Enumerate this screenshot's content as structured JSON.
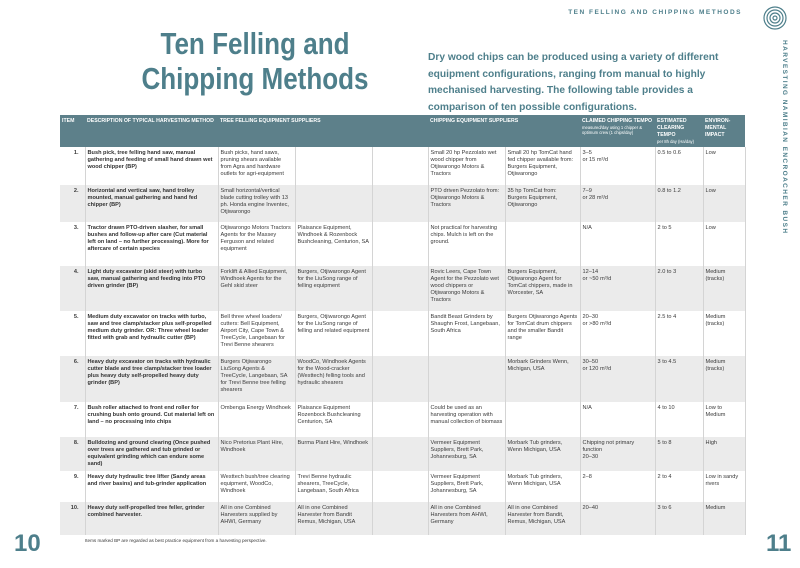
{
  "header": {
    "running_title": "TEN FELLING AND CHIPPING METHODS",
    "side_title": "HARVESTING NAMIBIAN ENCROACHER BUSH"
  },
  "title": "Ten Felling and Chipping Methods",
  "intro": "Dry wood chips can be produced using a variety of different equipment configurations, ranging from manual to highly mechanised harvesting. The following table provides a comparison of ten possible configurations.",
  "table": {
    "columns": {
      "item": "ITEM",
      "description": "DESCRIPTION OF TYPICAL HARVESTING METHOD",
      "felling": "TREE FELLING EQUIPMENT SUPPLIERS",
      "chipping": "CHIPPING EQUIPMENT SUPPLIERS",
      "chipping_tempo": "CLAIMED CHIPPING TEMPO",
      "chipping_tempo_note": "measured/day using 1 chipper & optimum crew (1 chips/day)",
      "clearing_tempo": "ESTIMATED CLEARING TEMPO",
      "clearing_tempo_note": "per 8h day (Ha/day)",
      "impact": "ENVIRON-MENTAL IMPACT"
    },
    "rows": [
      {
        "item": "1.",
        "description": "Bush pick, tree felling hand saw, manual gathering and feeding of small hand drawn wet wood chipper (BP)",
        "felling_1": "Bush picks, hand saws, pruning shears available from Agra and hardware outlets for agri-equipment",
        "chipping_1": "Small 20 hp Pezzolato wet wood chipper from Otjiwarongo Motors & Tractors",
        "chipping_2": "Small 20 hp TomCat hand fed chipper available from: Burgers Equipment, Otjiwarongo",
        "chipping_tempo": "3–5\nor 15 m³/d",
        "clearing_tempo": "0.5 to 0.6",
        "impact": "Low"
      },
      {
        "item": "2.",
        "description": "Horizontal and vertical saw, hand trolley mounted, manual gathering and hand fed chipper (BP)",
        "felling_1": "Small horizontal/vertical blade cutting trolley with 13 ph. Honda engine Inventec, Otjiwarongo",
        "chipping_1": "PTO driven Pezzolato from: Otjiwarongo Motors & Tractors",
        "chipping_2": "35 hp TomCat from: Burgers Equipment, Otjiwarongo",
        "chipping_tempo": "7–9\nor 28 m³/d",
        "clearing_tempo": "0.8 to 1.2",
        "impact": "Low"
      },
      {
        "item": "3.",
        "description": "Tractor drawn PTO-driven slasher, for small bushes and follow-up after care (Cut material left on land – no further processing). More for aftercare of certain species",
        "felling_1": "Otjiwarongo Motors Tractors Agents for the Massey Ferguson and related equipment",
        "felling_2": "Plaisance Equipment, Windhoek & Rozenbock Bushcleaning, Centurion, SA",
        "chipping_1": "Not practical for harvesting chips. Mulch is left on the ground.",
        "chipping_tempo": "N/A",
        "clearing_tempo": "2 to 5",
        "impact": "Low"
      },
      {
        "item": "4.",
        "description": "Light duty excavator (skid steer) with turbo saw, manual gathering and feeding into PTO driven grinder (BP)",
        "felling_1": "Forklift & Allied Equipment, Windhoek Agents for the Gehl skid steer",
        "felling_2": "Burgers, Otjiwarongo Agent for the LiuSong range of felling equipment",
        "chipping_1": "Rovic Leers, Cape Town Agent for the Pezzolato wet wood chippers or Otjiwarongo Motors & Tractors",
        "chipping_2": "Burgers Equipment, Otjiwarongo Agent for TomCat chippers, made in Worcester, SA",
        "chipping_tempo": "12–14\nor ~50 m³/d",
        "clearing_tempo": "2.0 to 3",
        "impact": "Medium (tracks)"
      },
      {
        "item": "5.",
        "description": "Medium duty excavator on tracks with turbo, saw and tree clamp/stacker plus self-propelled medium duty grinder. OR: Three wheel loader fitted with grab and hydraulic cutter (BP)",
        "felling_1": "Bell three wheel loaders/ cutters: Bell Equipment, Airport City, Cape Town & TreeCycle, Langebaan for Trevi Benne shearers",
        "felling_2": "Burgers, Otjiwarongo Agent for the LiuSong range of felling and related equipment",
        "chipping_1": "Bandit Beast Grinders by Shaughn Frost, Langebaan, South Africa",
        "chipping_2": "Burgers Otjiwarongo Agents for TomCat drum chippers and the smaller Bandit range",
        "chipping_tempo": "20–30\nor >80 m³/d",
        "clearing_tempo": "2.5 to 4",
        "impact": "Medium (tracks)"
      },
      {
        "item": "6.",
        "description": "Heavy duty excavator on tracks with hydraulic cutter blade and tree clamp/stacker tree loader plus heavy duty self-propelled heavy duty grinder (BP)",
        "felling_1": "Burgers Otjiwarongo LiuSong Agents & TreeCycle, Langebaan, SA for Trevi Benne tree felling shearers",
        "felling_2": "WoodCo, Windhoek Agents for the Wood-cracker (Westtech) felling tools and hydraulic shearers",
        "chipping_2": "Morbark Grinders Wenn, Michigan, USA",
        "chipping_tempo": "30–50\nor 120 m³/d",
        "clearing_tempo": "3 to 4.5",
        "impact": "Medium (tracks)"
      },
      {
        "item": "7.",
        "description": "Bush roller attached to front end roller for crushing bush onto ground. Cut material left on land – no processing into chips",
        "felling_1": "Ombenga Energy Windhoek",
        "felling_2": "Plaisance Equipment Rozenbock Bushcleaning Centurion, SA",
        "chipping_1": "Could be used as an harvesting operation with manual collection of biomass",
        "chipping_tempo": "N/A",
        "clearing_tempo": "4 to 10",
        "impact": "Low to Medium"
      },
      {
        "item": "8.",
        "description": "Bulldozing and ground clearing (Once pushed over trees are gathered and tub grinded or equivalent grinding which can endure some sand)",
        "felling_1": "Nico Pretorius Plant Hire, Windhoek",
        "felling_2": "Burma Plant Hire, Windhoek",
        "chipping_1": "Vermeer Equipment Suppliers, Brett Park, Johannesburg, SA",
        "chipping_2": "Morbark Tub grinders, Wenn Michigan, USA",
        "chipping_tempo": "Chipping not primary function\n20–30",
        "clearing_tempo": "5 to 8",
        "impact": "High"
      },
      {
        "item": "9.",
        "description": "Heavy duty hydraulic tree lifter (Sandy areas and river basins) and tub-grinder application",
        "felling_1": "Westtech bush/tree clearing equipment, WoodCo, Windhoek",
        "felling_2": "Trevi Benne hydraulic shearers, TreeCycle, Langebaan, South Africa",
        "chipping_1": "Vermeer Equipment Suppliers, Brett Park, Johannesburg, SA",
        "chipping_2": "Morbark Tub grinders, Wenn Michigan, USA",
        "chipping_tempo": "2–8",
        "clearing_tempo": "2 to 4",
        "impact": "Low in sandy rivers"
      },
      {
        "item": "10.",
        "description": "Heavy duty self-propelled tree feller, grinder combined harvester.",
        "felling_1": "All in one Combined Harvesters supplied by AHWI, Germany",
        "felling_2": "All in one Combined Harvester from Bandit Remus, Michigan, USA",
        "chipping_1": "All in one Combined Harvesters from AHWI, Germany",
        "chipping_2": "All in one Combined Harvester from Bandit, Remus, Michigan, USA",
        "chipping_tempo": "20–40",
        "clearing_tempo": "3 to 6",
        "impact": "Medium"
      }
    ]
  },
  "footnote": "Items marked BP are regarded as best practice equipment from a harvesting perspective.",
  "page_numbers": {
    "left": "10",
    "right": "11"
  }
}
